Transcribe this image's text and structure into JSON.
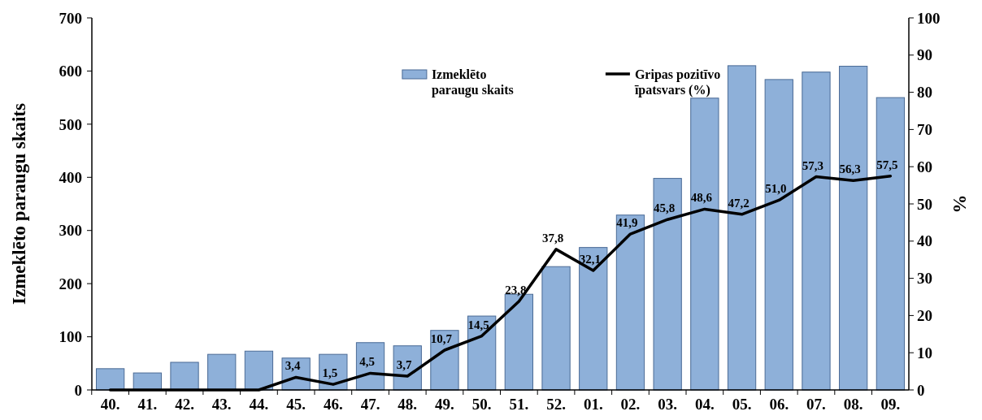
{
  "chart_data": {
    "type": "bar",
    "categories": [
      "40.",
      "41.",
      "42.",
      "43.",
      "44.",
      "45.",
      "46.",
      "47.",
      "48.",
      "49.",
      "50.",
      "51.",
      "52.",
      "01.",
      "02.",
      "03.",
      "04.",
      "05.",
      "06.",
      "07.",
      "08.",
      "09."
    ],
    "series": [
      {
        "name": "Izmeklēto paraugu skaits",
        "color": "#8eb0d9",
        "values": [
          40,
          32,
          52,
          67,
          73,
          60,
          67,
          89,
          83,
          112,
          139,
          180,
          232,
          268,
          329,
          398,
          549,
          610,
          584,
          598,
          609,
          550
        ]
      },
      {
        "name": "Gripas pozitīvo īpatsvars (%)",
        "type": "line",
        "axis": "y2",
        "color": "#000000",
        "values": [
          0,
          0,
          0,
          0,
          0,
          3.4,
          1.5,
          4.5,
          3.7,
          10.7,
          14.5,
          23.8,
          37.8,
          32.1,
          41.9,
          45.8,
          48.6,
          47.2,
          51.0,
          57.3,
          56.3,
          57.5
        ],
        "value_labels": [
          null,
          null,
          null,
          null,
          null,
          "3,4",
          "1,5",
          "4,5",
          "3,7",
          "10,7",
          "14,5",
          "23,8",
          "37,8",
          "32,1",
          "41,9",
          "45,8",
          "48,6",
          "47,2",
          "51,0",
          "57,3",
          "56,3",
          "57,5"
        ]
      }
    ],
    "ylabel": "Izmeklēto paraugu skaits",
    "y2label": "%",
    "ylim": [
      0,
      700
    ],
    "yticks": [
      0,
      100,
      200,
      300,
      400,
      500,
      600,
      700
    ],
    "y2lim": [
      0,
      100
    ],
    "y2ticks": [
      0,
      10,
      20,
      30,
      40,
      50,
      60,
      70,
      80,
      90,
      100
    ],
    "legend": "top",
    "grid": false,
    "marker": "none",
    "line_style": "solid"
  }
}
